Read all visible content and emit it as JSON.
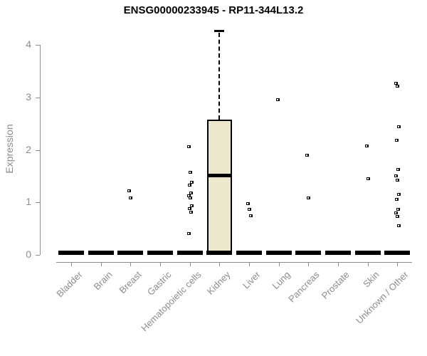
{
  "chart_data": {
    "type": "boxplot",
    "title": "ENSG00000233945 - RP11-344L13.2",
    "ylabel": "Expression",
    "xlabel": "",
    "ylim": [
      0,
      4.3
    ],
    "yticks": [
      0,
      1,
      2,
      3,
      4
    ],
    "grid": false,
    "legend": "none",
    "categories": [
      "Bladder",
      "Brain",
      "Breast",
      "Gastric",
      "Hematopoietic cells",
      "Kidney",
      "Liver",
      "Lung",
      "Pancreas",
      "Prostate",
      "Skin",
      "Unknown / Other"
    ],
    "boxes": [
      {
        "category": "Bladder",
        "q1": 0,
        "median": 0,
        "q3": 0,
        "whisker_low": 0,
        "whisker_high": 0,
        "points": []
      },
      {
        "category": "Brain",
        "q1": 0,
        "median": 0,
        "q3": 0,
        "whisker_low": 0,
        "whisker_high": 0,
        "points": []
      },
      {
        "category": "Breast",
        "q1": 0,
        "median": 0,
        "q3": 0,
        "whisker_low": 0,
        "whisker_high": 0,
        "points": [
          1.22,
          1.08
        ]
      },
      {
        "category": "Gastric",
        "q1": 0,
        "median": 0,
        "q3": 0,
        "whisker_low": 0,
        "whisker_high": 0,
        "points": []
      },
      {
        "category": "Hematopoietic cells",
        "q1": 0,
        "median": 0,
        "q3": 0,
        "whisker_low": 0,
        "whisker_high": 0,
        "points": [
          2.06,
          1.57,
          1.38,
          1.33,
          1.18,
          1.13,
          1.08,
          0.94,
          0.88,
          0.82,
          0.41
        ]
      },
      {
        "category": "Kidney",
        "q1": 0.03,
        "median": 1.5,
        "q3": 2.57,
        "whisker_low": 0,
        "whisker_high": 4.27,
        "points": []
      },
      {
        "category": "Liver",
        "q1": 0,
        "median": 0,
        "q3": 0,
        "whisker_low": 0,
        "whisker_high": 0,
        "points": [
          0.97,
          0.87,
          0.75
        ]
      },
      {
        "category": "Lung",
        "q1": 0,
        "median": 0,
        "q3": 0,
        "whisker_low": 0,
        "whisker_high": 0,
        "points": [
          2.95
        ]
      },
      {
        "category": "Pancreas",
        "q1": 0,
        "median": 0,
        "q3": 0,
        "whisker_low": 0,
        "whisker_high": 0,
        "points": [
          1.9,
          1.08
        ]
      },
      {
        "category": "Prostate",
        "q1": 0,
        "median": 0,
        "q3": 0,
        "whisker_low": 0,
        "whisker_high": 0,
        "points": []
      },
      {
        "category": "Skin",
        "q1": 0,
        "median": 0,
        "q3": 0,
        "whisker_low": 0,
        "whisker_high": 0,
        "points": [
          2.07,
          1.45
        ]
      },
      {
        "category": "Unknown / Other",
        "q1": 0,
        "median": 0,
        "q3": 0,
        "whisker_low": 0,
        "whisker_high": 0,
        "points": [
          3.27,
          3.21,
          2.44,
          2.18,
          1.63,
          1.5,
          1.43,
          1.15,
          1.06,
          0.87,
          0.8,
          0.73,
          0.55
        ]
      }
    ],
    "colors": {
      "box_fill": "#ede8cd",
      "box_border": "#000000",
      "median": "#000000",
      "point": "#000000",
      "axis": "#8c8c8c",
      "tick_label": "#8c8c8c",
      "title": "#000000"
    }
  }
}
